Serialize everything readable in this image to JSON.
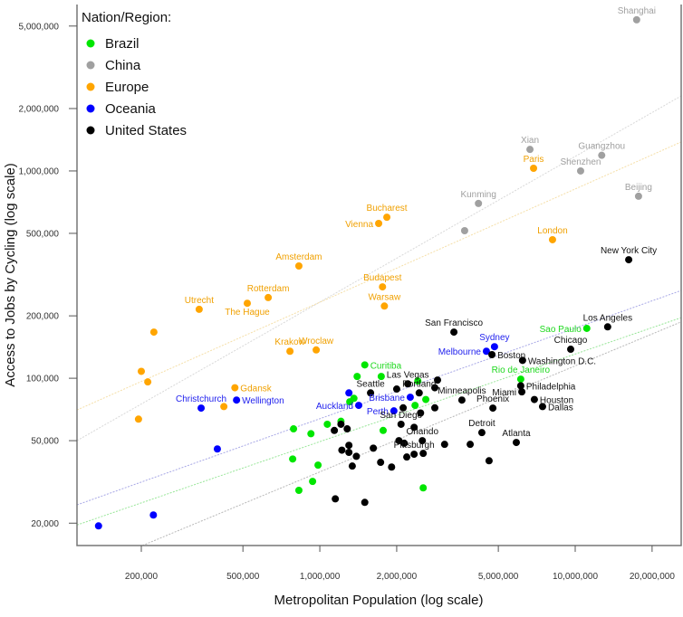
{
  "chart_data": {
    "type": "scatter",
    "xlabel": "Metropolitan Population (log scale)",
    "ylabel": "Access to Jobs by Cycling (log scale)",
    "x_scale": "log",
    "y_scale": "log",
    "xlim": [
      112000,
      26000000
    ],
    "ylim": [
      15600,
      6350000
    ],
    "grid": false,
    "x_ticks": [
      {
        "value": 200000,
        "label": "200,000"
      },
      {
        "value": 500000,
        "label": "500,000"
      },
      {
        "value": 1000000,
        "label": "1,000,000"
      },
      {
        "value": 2000000,
        "label": "2,000,000"
      },
      {
        "value": 5000000,
        "label": "5,000,000"
      },
      {
        "value": 10000000,
        "label": "10,000,000"
      },
      {
        "value": 20000000,
        "label": "20,000,000"
      }
    ],
    "y_ticks": [
      {
        "value": 20000,
        "label": "20,000"
      },
      {
        "value": 50000,
        "label": "50,000"
      },
      {
        "value": 100000,
        "label": "100,000"
      },
      {
        "value": 200000,
        "label": "200,000"
      },
      {
        "value": 500000,
        "label": "500,000"
      },
      {
        "value": 1000000,
        "label": "1,000,000"
      },
      {
        "value": 2000000,
        "label": "2,000,000"
      },
      {
        "value": 5000000,
        "label": "5,000,000"
      }
    ],
    "legend": {
      "title": "Nation/Region:",
      "placement": "top-left"
    },
    "series": [
      {
        "name": "Brazil",
        "color": "#00e600",
        "label_color": "#1ed81e",
        "trend": [
          [
            112000,
            19600
          ],
          [
            26000000,
            196000
          ]
        ],
        "trend_color": "#99e699",
        "points": [
          {
            "x": 11100000,
            "y": 174000,
            "label": "Sao Paulo",
            "pos": "left"
          },
          {
            "x": 6120000,
            "y": 99000,
            "label": "Rio de Janeiro",
            "pos": "above"
          },
          {
            "x": 1500000,
            "y": 116000,
            "label": "Curitiba",
            "pos": "right"
          },
          {
            "x": 1400000,
            "y": 102000
          },
          {
            "x": 1740000,
            "y": 102000
          },
          {
            "x": 2420000,
            "y": 97000
          },
          {
            "x": 2600000,
            "y": 79000
          },
          {
            "x": 1360000,
            "y": 80000
          },
          {
            "x": 1310000,
            "y": 77000
          },
          {
            "x": 2360000,
            "y": 74000
          },
          {
            "x": 1210000,
            "y": 62000
          },
          {
            "x": 1070000,
            "y": 60000
          },
          {
            "x": 789000,
            "y": 57000
          },
          {
            "x": 923000,
            "y": 54000
          },
          {
            "x": 1770000,
            "y": 56000
          },
          {
            "x": 783000,
            "y": 40800
          },
          {
            "x": 984000,
            "y": 38100
          },
          {
            "x": 937000,
            "y": 31800
          },
          {
            "x": 828000,
            "y": 28800
          },
          {
            "x": 2540000,
            "y": 29600
          }
        ]
      },
      {
        "name": "China",
        "color": "#a0a0a0",
        "label_color": "#a0a0a0",
        "trend": [
          [
            112000,
            50000
          ],
          [
            26000000,
            2300000
          ]
        ],
        "trend_color": "#d8d8d8",
        "points": [
          {
            "x": 17400000,
            "y": 5360000,
            "label": "Shanghai",
            "pos": "above"
          },
          {
            "x": 6650000,
            "y": 1270000,
            "label": "Xian",
            "pos": "above"
          },
          {
            "x": 12700000,
            "y": 1190000,
            "label": "Guangzhou",
            "pos": "above"
          },
          {
            "x": 10500000,
            "y": 1000000,
            "label": "Shenzhen",
            "pos": "above"
          },
          {
            "x": 17700000,
            "y": 755000,
            "label": "Beijing",
            "pos": "above"
          },
          {
            "x": 4180000,
            "y": 697000,
            "label": "Kunming",
            "pos": "above"
          },
          {
            "x": 3690000,
            "y": 515000
          }
        ]
      },
      {
        "name": "Europe",
        "color": "#ffa500",
        "label_color": "#f0a000",
        "trend": [
          [
            112000,
            70300
          ],
          [
            26000000,
            1380000
          ]
        ],
        "trend_color": "#f5dfa8",
        "points": [
          {
            "x": 6870000,
            "y": 1030000,
            "label": "Paris",
            "pos": "above"
          },
          {
            "x": 1830000,
            "y": 598000,
            "label": "Bucharest",
            "pos": "above"
          },
          {
            "x": 1700000,
            "y": 558000,
            "label": "Vienna",
            "pos": "left"
          },
          {
            "x": 8150000,
            "y": 466000,
            "label": "London",
            "pos": "above"
          },
          {
            "x": 828000,
            "y": 348000,
            "label": "Amsterdam",
            "pos": "above"
          },
          {
            "x": 1760000,
            "y": 276000,
            "label": "Budapest",
            "pos": "above"
          },
          {
            "x": 628000,
            "y": 245000,
            "label": "Rotterdam",
            "pos": "above"
          },
          {
            "x": 520000,
            "y": 230000,
            "label": "The Hague",
            "pos": "below"
          },
          {
            "x": 337000,
            "y": 215000,
            "label": "Utrecht",
            "pos": "above"
          },
          {
            "x": 1790000,
            "y": 223000,
            "label": "Warsaw",
            "pos": "above"
          },
          {
            "x": 224000,
            "y": 167000
          },
          {
            "x": 764000,
            "y": 135000,
            "label": "Krakow",
            "pos": "above"
          },
          {
            "x": 968000,
            "y": 137000,
            "label": "Wroclaw",
            "pos": "above"
          },
          {
            "x": 200000,
            "y": 108000
          },
          {
            "x": 212000,
            "y": 96000
          },
          {
            "x": 465000,
            "y": 90000,
            "label": "Gdansk",
            "pos": "right"
          },
          {
            "x": 421000,
            "y": 73000
          },
          {
            "x": 195000,
            "y": 63500
          }
        ]
      },
      {
        "name": "Oceania",
        "color": "#0000ff",
        "label_color": "#2222ee",
        "trend": [
          [
            112000,
            24500
          ],
          [
            26000000,
            265000
          ]
        ],
        "trend_color": "#a8a8e6",
        "points": [
          {
            "x": 4830000,
            "y": 142000,
            "label": "Sydney",
            "pos": "above"
          },
          {
            "x": 4490000,
            "y": 135000,
            "label": "Melbourne",
            "pos": "left"
          },
          {
            "x": 343000,
            "y": 71800,
            "label": "Christchurch",
            "pos": "above"
          },
          {
            "x": 472000,
            "y": 78500,
            "label": "Wellington",
            "pos": "right"
          },
          {
            "x": 2260000,
            "y": 81000,
            "label": "Brisbane",
            "pos": "left"
          },
          {
            "x": 1420000,
            "y": 74000,
            "label": "Auckland",
            "pos": "left"
          },
          {
            "x": 1950000,
            "y": 69600,
            "label": "Perth",
            "pos": "left"
          },
          {
            "x": 1300000,
            "y": 85000
          },
          {
            "x": 397000,
            "y": 45600
          },
          {
            "x": 223000,
            "y": 21900
          },
          {
            "x": 136000,
            "y": 19400
          }
        ]
      },
      {
        "name": "United States",
        "color": "#000000",
        "label_color": "#111111",
        "trend": [
          [
            202000,
            15600
          ],
          [
            26000000,
            187000
          ]
        ],
        "trend_color": "#b8b8b8",
        "points": [
          {
            "x": 16200000,
            "y": 373000,
            "label": "New York City",
            "pos": "above"
          },
          {
            "x": 13400000,
            "y": 177000,
            "label": "Los Angeles",
            "pos": "above"
          },
          {
            "x": 3350000,
            "y": 167000,
            "label": "San Francisco",
            "pos": "above"
          },
          {
            "x": 9600000,
            "y": 138000,
            "label": "Chicago",
            "pos": "above"
          },
          {
            "x": 4720000,
            "y": 130000,
            "label": "Boston",
            "pos": "right"
          },
          {
            "x": 6220000,
            "y": 122000,
            "label": "Washington D.C.",
            "pos": "right"
          },
          {
            "x": 6120000,
            "y": 92000,
            "label": "Philadelphia",
            "pos": "right"
          },
          {
            "x": 6180000,
            "y": 86000,
            "label": "Miami",
            "pos": "left"
          },
          {
            "x": 6920000,
            "y": 79000,
            "label": "Houston",
            "pos": "right"
          },
          {
            "x": 7450000,
            "y": 73000,
            "label": "Dallas",
            "pos": "right"
          },
          {
            "x": 4760000,
            "y": 71800,
            "label": "Phoenix",
            "pos": "above"
          },
          {
            "x": 3600000,
            "y": 78500,
            "label": "Minneapolis",
            "pos": "above"
          },
          {
            "x": 4310000,
            "y": 54700,
            "label": "Detroit",
            "pos": "above"
          },
          {
            "x": 5880000,
            "y": 49000,
            "label": "Atlanta",
            "pos": "above"
          },
          {
            "x": 2210000,
            "y": 94000,
            "label": "Las Vegas",
            "pos": "above"
          },
          {
            "x": 1580000,
            "y": 85000,
            "label": "Seattle",
            "pos": "above"
          },
          {
            "x": 2450000,
            "y": 85000,
            "label": "Portland",
            "pos": "above"
          },
          {
            "x": 2080000,
            "y": 60000,
            "label": "San Diego",
            "pos": "above"
          },
          {
            "x": 2520000,
            "y": 50000,
            "label": "Orlando",
            "pos": "above"
          },
          {
            "x": 2340000,
            "y": 43000,
            "label": "Pittsburgh",
            "pos": "above"
          },
          {
            "x": 2890000,
            "y": 98000
          },
          {
            "x": 2820000,
            "y": 90000
          },
          {
            "x": 2000000,
            "y": 88700
          },
          {
            "x": 2820000,
            "y": 72000
          },
          {
            "x": 2120000,
            "y": 72000
          },
          {
            "x": 2480000,
            "y": 68000
          },
          {
            "x": 2340000,
            "y": 58000
          },
          {
            "x": 1210000,
            "y": 60000
          },
          {
            "x": 1140000,
            "y": 56000
          },
          {
            "x": 1280000,
            "y": 57000
          },
          {
            "x": 2040000,
            "y": 50000
          },
          {
            "x": 2140000,
            "y": 48600
          },
          {
            "x": 3080000,
            "y": 48000
          },
          {
            "x": 3880000,
            "y": 48000
          },
          {
            "x": 1300000,
            "y": 47500
          },
          {
            "x": 1220000,
            "y": 45000
          },
          {
            "x": 1300000,
            "y": 43900
          },
          {
            "x": 1620000,
            "y": 46000
          },
          {
            "x": 2540000,
            "y": 43400
          },
          {
            "x": 1390000,
            "y": 42000
          },
          {
            "x": 2190000,
            "y": 41700
          },
          {
            "x": 1730000,
            "y": 39300
          },
          {
            "x": 1910000,
            "y": 37300
          },
          {
            "x": 1340000,
            "y": 37700
          },
          {
            "x": 4600000,
            "y": 40000
          },
          {
            "x": 1150000,
            "y": 26200
          },
          {
            "x": 1500000,
            "y": 25200
          }
        ]
      }
    ]
  }
}
